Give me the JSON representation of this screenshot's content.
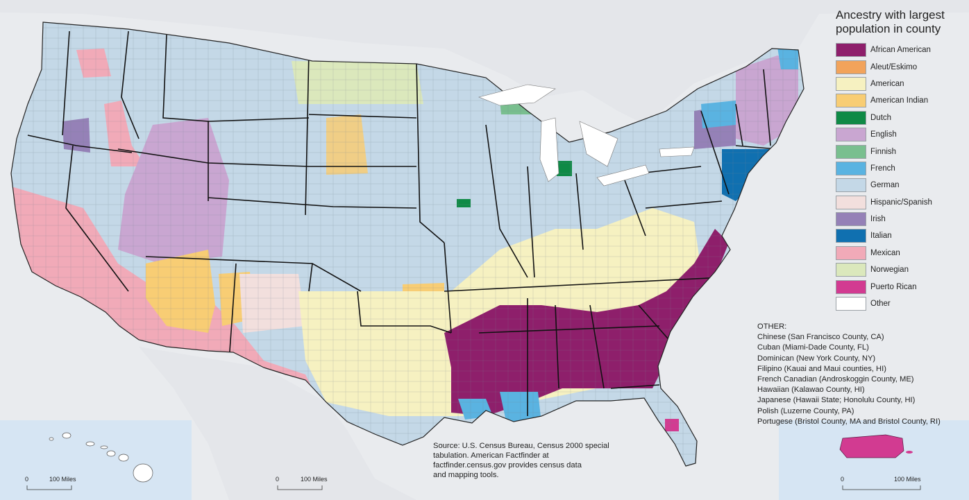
{
  "legend": {
    "title_line1": "Ancestry with largest",
    "title_line2": "population in county",
    "items": [
      {
        "label": "African American",
        "color": "#8e1f6b"
      },
      {
        "label": "Aleut/Eskimo",
        "color": "#f2a35b"
      },
      {
        "label": "American",
        "color": "#f6f1c1"
      },
      {
        "label": "American Indian",
        "color": "#f8cd74"
      },
      {
        "label": "Dutch",
        "color": "#0f8a46"
      },
      {
        "label": "English",
        "color": "#c9a6d1"
      },
      {
        "label": "Finnish",
        "color": "#79bf8f"
      },
      {
        "label": "French",
        "color": "#5ab3e1"
      },
      {
        "label": "German",
        "color": "#c4d8e7"
      },
      {
        "label": "Hispanic/Spanish",
        "color": "#f2dfdd"
      },
      {
        "label": "Irish",
        "color": "#9581b7"
      },
      {
        "label": "Italian",
        "color": "#1070b0"
      },
      {
        "label": "Mexican",
        "color": "#f1aab8"
      },
      {
        "label": "Norwegian",
        "color": "#dbe8bc"
      },
      {
        "label": "Puerto Rican",
        "color": "#d23b91"
      },
      {
        "label": "Other",
        "color": "#ffffff"
      }
    ]
  },
  "other": {
    "heading": "OTHER:",
    "lines": [
      "Chinese (San Francisco County, CA)",
      "Cuban (Miami-Dade County, FL)",
      "Dominican (New York County, NY)",
      "Filipino (Kauai and Maui counties, HI)",
      "French Canadian (Androskoggin County, ME)",
      "Hawaiian (Kalawao County, HI)",
      "Japanese (Hawaii State; Honolulu County, HI)",
      "Polish (Luzerne County, PA)",
      "Portugese (Bristol County, MA and Bristol County, RI)"
    ]
  },
  "source": {
    "line1": "Source: U.S. Census Bureau, Census 2000 special",
    "line2": "tabulation. American Factfinder at",
    "line3": "factfinder.census.gov provides census data",
    "line4": "and mapping tools."
  },
  "scale_bars": {
    "hawaii": {
      "zero": "0",
      "label": "100 Miles"
    },
    "alaska": {
      "zero": "0",
      "label": "100 Miles"
    },
    "puerto_rico": {
      "zero": "0",
      "label": "100 Miles"
    }
  }
}
